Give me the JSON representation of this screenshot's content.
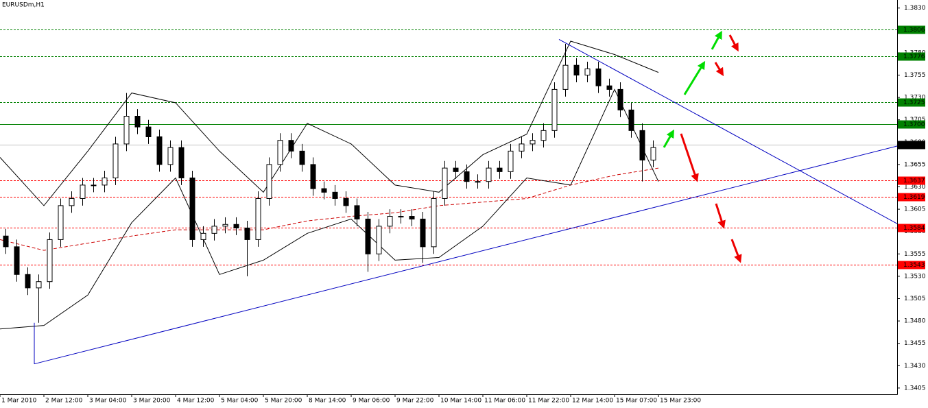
{
  "chart_data": {
    "type": "candlestick",
    "title": "EURUSDm,H1",
    "candle_color": "#000000",
    "x": [
      2,
      6,
      10,
      14,
      18,
      22,
      26,
      30,
      34,
      38,
      42,
      46,
      50,
      54,
      58,
      62,
      66,
      70,
      74,
      78,
      82,
      86,
      90,
      94,
      98,
      102,
      106,
      110,
      114,
      118,
      122,
      126,
      130,
      134,
      138,
      142,
      146,
      150,
      154,
      158,
      162,
      166,
      170,
      174,
      178,
      182,
      186,
      190,
      194,
      198,
      202,
      206,
      210,
      214,
      218,
      222,
      226,
      230,
      234,
      238
    ],
    "open": [
      1.3575,
      1.3563,
      1.3532,
      1.3517,
      1.3524,
      1.3571,
      1.3609,
      1.3617,
      1.3632,
      1.3632,
      1.364,
      1.3678,
      1.3709,
      1.3697,
      1.3686,
      1.3655,
      1.3674,
      1.364,
      1.3571,
      1.3578,
      1.3586,
      1.3588,
      1.3584,
      1.3571,
      1.3617,
      1.3655,
      1.3682,
      1.367,
      1.3655,
      1.3628,
      1.3624,
      1.3617,
      1.3609,
      1.3594,
      1.3555,
      1.3586,
      1.3597,
      1.3597,
      1.3594,
      1.3563,
      1.3617,
      1.3651,
      1.3647,
      1.3636,
      1.3636,
      1.3651,
      1.3647,
      1.367,
      1.3678,
      1.3682,
      1.3693,
      1.3739,
      1.3766,
      1.3755,
      1.3762,
      1.3743,
      1.3739,
      1.3716,
      1.3693,
      1.366
    ],
    "high": [
      1.3583,
      1.3571,
      1.354,
      1.3532,
      1.3579,
      1.3617,
      1.3625,
      1.364,
      1.364,
      1.3648,
      1.3686,
      1.3735,
      1.3717,
      1.3705,
      1.3694,
      1.3682,
      1.3682,
      1.3648,
      1.3586,
      1.3594,
      1.3596,
      1.3596,
      1.3592,
      1.3625,
      1.3663,
      1.369,
      1.369,
      1.3678,
      1.3663,
      1.3636,
      1.3632,
      1.3625,
      1.3617,
      1.3602,
      1.3594,
      1.3605,
      1.3605,
      1.3605,
      1.3602,
      1.3625,
      1.3659,
      1.3659,
      1.3655,
      1.3644,
      1.3659,
      1.3659,
      1.3678,
      1.3686,
      1.369,
      1.3701,
      1.3747,
      1.379,
      1.3774,
      1.377,
      1.377,
      1.3751,
      1.3747,
      1.3724,
      1.3701,
      1.3682
    ],
    "low": [
      1.3555,
      1.3524,
      1.3509,
      1.3478,
      1.3516,
      1.3563,
      1.3601,
      1.3609,
      1.3624,
      1.3624,
      1.3632,
      1.367,
      1.3689,
      1.3678,
      1.3647,
      1.3647,
      1.3632,
      1.3563,
      1.3563,
      1.357,
      1.3578,
      1.3576,
      1.353,
      1.3563,
      1.3609,
      1.3647,
      1.3662,
      1.3647,
      1.362,
      1.3616,
      1.3609,
      1.3601,
      1.3586,
      1.3535,
      1.3547,
      1.3578,
      1.3589,
      1.3586,
      1.3545,
      1.3555,
      1.3609,
      1.3639,
      1.3628,
      1.3628,
      1.3628,
      1.3639,
      1.3639,
      1.3662,
      1.367,
      1.3674,
      1.3685,
      1.3731,
      1.3747,
      1.3747,
      1.3735,
      1.3731,
      1.3708,
      1.3685,
      1.3636,
      1.3652
    ],
    "close": [
      1.3563,
      1.3532,
      1.3517,
      1.3524,
      1.3571,
      1.3609,
      1.3617,
      1.3632,
      1.3632,
      1.364,
      1.3678,
      1.3709,
      1.3697,
      1.3686,
      1.3655,
      1.3674,
      1.364,
      1.3571,
      1.3578,
      1.3586,
      1.3588,
      1.3584,
      1.3571,
      1.3617,
      1.3655,
      1.3682,
      1.367,
      1.3655,
      1.3628,
      1.3624,
      1.3617,
      1.3609,
      1.3594,
      1.3555,
      1.3586,
      1.3597,
      1.3597,
      1.3594,
      1.3563,
      1.3617,
      1.3651,
      1.3647,
      1.3636,
      1.3636,
      1.3651,
      1.3647,
      1.367,
      1.3678,
      1.3682,
      1.3693,
      1.3739,
      1.3766,
      1.3755,
      1.3762,
      1.3743,
      1.3739,
      1.3716,
      1.3693,
      1.366,
      1.3674
    ],
    "indicators": [
      {
        "color": "#cc0000",
        "dashed": true,
        "x": [
          0,
          16,
          32,
          48,
          64,
          80,
          96,
          112,
          128,
          144,
          160,
          176,
          192,
          208,
          224,
          240
        ],
        "values": [
          1.3571,
          1.3559,
          1.3567,
          1.3575,
          1.3582,
          1.3582,
          1.3582,
          1.3592,
          1.3597,
          1.3601,
          1.3609,
          1.3613,
          1.3617,
          1.3632,
          1.3643,
          1.3651
        ]
      },
      {
        "color": "#000000",
        "dashed": false,
        "x": [
          0,
          16,
          32,
          48,
          64,
          80,
          96,
          112,
          128,
          144,
          160,
          176,
          192,
          208,
          224,
          240
        ],
        "values": [
          1.3663,
          1.3609,
          1.367,
          1.3735,
          1.3724,
          1.367,
          1.3624,
          1.3701,
          1.3678,
          1.3632,
          1.3624,
          1.3666,
          1.3689,
          1.3793,
          1.3778,
          1.3758
        ]
      },
      {
        "color": "#000000",
        "dashed": false,
        "x": [
          0,
          16,
          32,
          48,
          64,
          80,
          96,
          112,
          128,
          144,
          160,
          176,
          192,
          208,
          224,
          240
        ],
        "values": [
          1.3471,
          1.3475,
          1.3509,
          1.359,
          1.364,
          1.3532,
          1.3548,
          1.3578,
          1.3594,
          1.3548,
          1.3551,
          1.3586,
          1.364,
          1.3632,
          1.3739,
          1.3636
        ]
      }
    ],
    "trendlines": [
      {
        "color": "#0000c0",
        "x": [
          12.5,
          327.5
        ],
        "values": [
          1.3432,
          1.3676
        ]
      },
      {
        "color": "#0000c0",
        "x": [
          203.75,
          327.5
        ],
        "values": [
          1.3795,
          1.3588
        ]
      },
      {
        "color": "#0000c0",
        "x": [
          12.5,
          12.5
        ],
        "values": [
          1.3478,
          1.3432
        ]
      }
    ],
    "levels": [
      {
        "value": 1.3806,
        "label": "1.3806",
        "color": "#008000",
        "dashed": true
      },
      {
        "value": 1.3776,
        "label": "1.3776",
        "color": "#008000",
        "dashed": true
      },
      {
        "value": 1.3725,
        "label": "1.3725",
        "color": "#008000",
        "dashed": true
      },
      {
        "value": 1.37,
        "label": "1.3700",
        "color": "#008000",
        "dashed": false
      },
      {
        "value": 1.3677,
        "label": "1.3677",
        "color": "#000000",
        "dashed": false
      },
      {
        "value": 1.3637,
        "label": "1.3637",
        "color": "#ff0000",
        "dashed": true
      },
      {
        "value": 1.3619,
        "label": "1.3619",
        "color": "#ff0000",
        "dashed": true
      },
      {
        "value": 1.3584,
        "label": "1.3584",
        "color": "#ff0000",
        "dashed": true
      },
      {
        "value": 1.3543,
        "label": "1.3543",
        "color": "#ff0000",
        "dashed": true
      }
    ],
    "xlim": [
      0,
      327
    ],
    "xticks": [
      {
        "value": 0,
        "label": "1 Mar 2010"
      },
      {
        "value": 16,
        "label": "2 Mar 12:00"
      },
      {
        "value": 32,
        "label": "3 Mar 04:00"
      },
      {
        "value": 48,
        "label": "3 Mar 20:00"
      },
      {
        "value": 64,
        "label": "4 Mar 12:00"
      },
      {
        "value": 80,
        "label": "5 Mar 04:00"
      },
      {
        "value": 96,
        "label": "5 Mar 20:00"
      },
      {
        "value": 112,
        "label": "8 Mar 14:00"
      },
      {
        "value": 128,
        "label": "9 Mar 06:00"
      },
      {
        "value": 144,
        "label": "9 Mar 22:00"
      },
      {
        "value": 160,
        "label": "10 Mar 14:00"
      },
      {
        "value": 176,
        "label": "11 Mar 06:00"
      },
      {
        "value": 192,
        "label": "11 Mar 22:00"
      },
      {
        "value": 208,
        "label": "12 Mar 14:00"
      },
      {
        "value": 224,
        "label": "15 Mar 07:00"
      },
      {
        "value": 240,
        "label": "15 Mar 23:00"
      }
    ],
    "ylim": [
      1.3398,
      1.3839
    ],
    "yticks": [
      {
        "value": 1.383,
        "label": "1.3830"
      },
      {
        "value": 1.3805,
        "label": "1.3805"
      },
      {
        "value": 1.378,
        "label": "1.3780"
      },
      {
        "value": 1.3755,
        "label": "1.3755"
      },
      {
        "value": 1.373,
        "label": "1.3730"
      },
      {
        "value": 1.3705,
        "label": "1.3705"
      },
      {
        "value": 1.368,
        "label": "1.3680"
      },
      {
        "value": 1.3655,
        "label": "1.3655"
      },
      {
        "value": 1.363,
        "label": "1.3630"
      },
      {
        "value": 1.3605,
        "label": "1.3605"
      },
      {
        "value": 1.358,
        "label": "1.3580"
      },
      {
        "value": 1.3555,
        "label": "1.3555"
      },
      {
        "value": 1.353,
        "label": "1.3530"
      },
      {
        "value": 1.3505,
        "label": "1.3505"
      },
      {
        "value": 1.348,
        "label": "1.3480"
      },
      {
        "value": 1.3455,
        "label": "1.3455"
      },
      {
        "value": 1.343,
        "label": "1.3430"
      },
      {
        "value": 1.3405,
        "label": "1.3405"
      }
    ]
  }
}
